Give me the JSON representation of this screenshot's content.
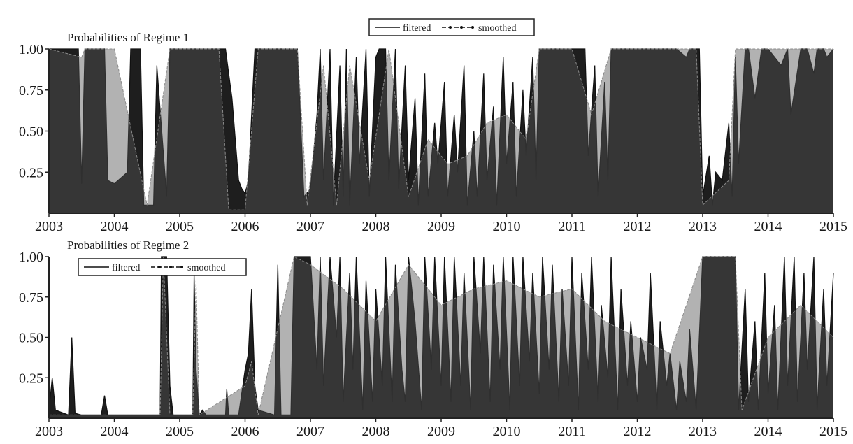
{
  "chart_data": [
    {
      "type": "area",
      "title": "Probabilities of Regime 1",
      "x_range": [
        2003,
        2015
      ],
      "ylim": [
        0,
        1
      ],
      "y_ticks": [
        "0.25",
        "0.50",
        "0.75",
        "1.00"
      ],
      "y_tick_values": [
        0.25,
        0.5,
        0.75,
        1.0
      ],
      "x_ticks": [
        "2003",
        "2004",
        "2005",
        "2006",
        "2007",
        "2008",
        "2009",
        "2010",
        "2011",
        "2012",
        "2013",
        "2014",
        "2015"
      ],
      "x_tick_values": [
        2003,
        2004,
        2005,
        2006,
        2007,
        2008,
        2009,
        2010,
        2011,
        2012,
        2013,
        2014,
        2015
      ],
      "legend": {
        "placement": "top-center",
        "entries": [
          "filtered",
          "smoothed"
        ]
      },
      "grid": false,
      "series": [
        {
          "name": "filtered",
          "color": "#1e1e1e",
          "x": [
            2003.0,
            2003.45,
            2003.5,
            2003.55,
            2003.85,
            2003.9,
            2004.0,
            2004.2,
            2004.25,
            2004.4,
            2004.45,
            2004.6,
            2004.65,
            2004.8,
            2004.85,
            2005.0,
            2005.5,
            2005.6,
            2005.7,
            2005.75,
            2005.8,
            2005.85,
            2005.9,
            2005.95,
            2006.0,
            2006.05,
            2006.1,
            2006.15,
            2006.2,
            2006.3,
            2006.6,
            2006.7,
            2006.75,
            2006.8,
            2006.9,
            2007.0,
            2007.1,
            2007.15,
            2007.2,
            2007.3,
            2007.35,
            2007.45,
            2007.5,
            2007.55,
            2007.6,
            2007.7,
            2007.75,
            2007.85,
            2007.9,
            2008.0,
            2008.05,
            2008.15,
            2008.2,
            2008.3,
            2008.35,
            2008.45,
            2008.5,
            2008.6,
            2008.65,
            2008.75,
            2008.8,
            2008.9,
            2008.95,
            2009.05,
            2009.1,
            2009.2,
            2009.25,
            2009.35,
            2009.4,
            2009.5,
            2009.55,
            2009.65,
            2009.7,
            2009.8,
            2009.85,
            2009.95,
            2010.0,
            2010.1,
            2010.15,
            2010.25,
            2010.3,
            2010.4,
            2010.45,
            2010.5,
            2010.6,
            2010.8,
            2011.0,
            2011.2,
            2011.25,
            2011.35,
            2011.4,
            2011.5,
            2011.55,
            2011.6,
            2011.7,
            2011.75,
            2011.8,
            2012.0,
            2012.2,
            2012.4,
            2012.6,
            2012.75,
            2012.8,
            2012.95,
            2013.0,
            2013.1,
            2013.15,
            2013.2,
            2013.3,
            2013.4,
            2013.45,
            2013.5,
            2013.55,
            2013.65,
            2013.7,
            2013.8,
            2013.9,
            2014.0,
            2014.2,
            2014.3,
            2014.35,
            2014.5,
            2014.6,
            2014.7,
            2014.75,
            2014.85,
            2014.9,
            2015.0
          ],
          "values": [
            1.0,
            1.0,
            0.18,
            1.0,
            1.0,
            0.2,
            0.18,
            0.25,
            1.0,
            1.0,
            0.05,
            0.05,
            0.9,
            0.1,
            1.0,
            1.0,
            1.0,
            1.0,
            1.0,
            0.85,
            0.7,
            0.45,
            0.2,
            0.15,
            0.12,
            0.2,
            0.6,
            1.0,
            1.0,
            1.0,
            1.0,
            1.0,
            1.0,
            1.0,
            0.1,
            0.15,
            0.6,
            1.0,
            0.2,
            1.0,
            0.05,
            0.9,
            0.1,
            1.0,
            0.05,
            0.95,
            0.3,
            1.0,
            0.1,
            0.95,
            1.0,
            1.0,
            0.2,
            1.0,
            0.15,
            0.9,
            0.2,
            0.7,
            0.05,
            0.85,
            0.1,
            0.55,
            0.3,
            0.8,
            0.1,
            0.6,
            0.25,
            0.9,
            0.05,
            0.5,
            0.1,
            0.85,
            0.2,
            0.65,
            0.05,
            0.95,
            0.3,
            0.8,
            0.1,
            0.75,
            0.35,
            0.95,
            0.2,
            1.0,
            1.0,
            1.0,
            1.0,
            1.0,
            0.35,
            0.9,
            0.1,
            0.8,
            0.2,
            1.0,
            1.0,
            1.0,
            1.0,
            1.0,
            1.0,
            1.0,
            1.0,
            0.95,
            1.0,
            1.0,
            0.1,
            0.35,
            0.05,
            0.25,
            0.2,
            0.55,
            0.1,
            0.95,
            0.3,
            1.0,
            1.0,
            0.7,
            1.0,
            1.0,
            0.9,
            1.0,
            0.6,
            1.0,
            1.0,
            0.85,
            1.0,
            1.0,
            0.95,
            1.0
          ]
        },
        {
          "name": "smoothed",
          "color": "#555555",
          "x": [
            2003.0,
            2003.5,
            2003.55,
            2004.0,
            2004.5,
            2004.85,
            2005.6,
            2005.75,
            2006.0,
            2006.2,
            2006.8,
            2006.95,
            2007.2,
            2007.4,
            2007.6,
            2007.9,
            2008.2,
            2008.5,
            2008.8,
            2009.1,
            2009.4,
            2009.7,
            2010.0,
            2010.3,
            2010.5,
            2011.0,
            2011.3,
            2011.6,
            2012.0,
            2012.5,
            2012.9,
            2013.0,
            2013.4,
            2013.5,
            2014.0,
            2014.5,
            2015.0
          ],
          "values": [
            1.0,
            0.95,
            1.0,
            1.0,
            0.05,
            1.0,
            1.0,
            0.02,
            0.02,
            1.0,
            1.0,
            0.05,
            0.9,
            0.05,
            0.9,
            0.2,
            1.0,
            0.1,
            0.45,
            0.3,
            0.35,
            0.55,
            0.6,
            0.45,
            1.0,
            1.0,
            0.6,
            1.0,
            1.0,
            1.0,
            1.0,
            0.05,
            0.2,
            1.0,
            1.0,
            1.0,
            1.0
          ]
        }
      ]
    },
    {
      "type": "area",
      "title": "Probabilities of Regime 2",
      "x_range": [
        2003,
        2015
      ],
      "ylim": [
        0,
        1
      ],
      "y_ticks": [
        "0.25",
        "0.50",
        "0.75",
        "1.00"
      ],
      "y_tick_values": [
        0.25,
        0.5,
        0.75,
        1.0
      ],
      "x_ticks": [
        "2003",
        "2004",
        "2005",
        "2006",
        "2007",
        "2008",
        "2009",
        "2010",
        "2011",
        "2012",
        "2013",
        "2014",
        "2015"
      ],
      "x_tick_values": [
        2003,
        2004,
        2005,
        2006,
        2007,
        2008,
        2009,
        2010,
        2011,
        2012,
        2013,
        2014,
        2015
      ],
      "legend": {
        "placement": "top-left",
        "entries": [
          "filtered",
          "smoothed"
        ]
      },
      "grid": false,
      "series": [
        {
          "name": "filtered",
          "color": "#1e1e1e",
          "x": [
            2003.0,
            2003.05,
            2003.1,
            2003.3,
            2003.35,
            2003.4,
            2003.5,
            2003.8,
            2003.85,
            2003.9,
            2004.5,
            2004.7,
            2004.72,
            2004.8,
            2004.85,
            2004.9,
            2005.2,
            2005.22,
            2005.25,
            2005.3,
            2005.35,
            2005.4,
            2005.7,
            2005.72,
            2005.75,
            2005.9,
            2006.0,
            2006.05,
            2006.1,
            2006.15,
            2006.2,
            2006.45,
            2006.5,
            2006.55,
            2006.7,
            2006.75,
            2007.0,
            2007.1,
            2007.15,
            2007.2,
            2007.3,
            2007.4,
            2007.45,
            2007.5,
            2007.6,
            2007.65,
            2007.7,
            2007.8,
            2007.85,
            2007.95,
            2008.0,
            2008.1,
            2008.15,
            2008.25,
            2008.3,
            2008.4,
            2008.45,
            2008.5,
            2008.6,
            2008.7,
            2008.75,
            2008.85,
            2008.9,
            2009.0,
            2009.05,
            2009.15,
            2009.2,
            2009.3,
            2009.35,
            2009.45,
            2009.5,
            2009.6,
            2009.65,
            2009.75,
            2009.8,
            2009.9,
            2009.95,
            2010.05,
            2010.1,
            2010.2,
            2010.25,
            2010.35,
            2010.4,
            2010.5,
            2010.55,
            2010.65,
            2010.7,
            2010.8,
            2010.85,
            2010.95,
            2011.0,
            2011.1,
            2011.15,
            2011.25,
            2011.3,
            2011.4,
            2011.45,
            2011.55,
            2011.6,
            2011.7,
            2011.75,
            2011.85,
            2011.9,
            2012.0,
            2012.05,
            2012.15,
            2012.2,
            2012.3,
            2012.35,
            2012.45,
            2012.5,
            2012.6,
            2012.65,
            2012.75,
            2012.8,
            2012.9,
            2013.0,
            2013.1,
            2013.2,
            2013.5,
            2013.55,
            2013.65,
            2013.7,
            2013.8,
            2013.85,
            2013.95,
            2014.0,
            2014.1,
            2014.15,
            2014.25,
            2014.3,
            2014.4,
            2014.45,
            2014.55,
            2014.6,
            2014.7,
            2014.75,
            2014.85,
            2014.9,
            2015.0
          ],
          "values": [
            0.05,
            0.25,
            0.05,
            0.02,
            0.5,
            0.03,
            0.02,
            0.02,
            0.14,
            0.02,
            0.02,
            0.02,
            1.0,
            1.0,
            0.2,
            0.02,
            0.02,
            0.9,
            0.3,
            0.02,
            0.05,
            0.02,
            0.02,
            0.18,
            0.02,
            0.02,
            0.3,
            0.4,
            0.8,
            0.2,
            0.05,
            0.02,
            0.95,
            0.02,
            0.02,
            1.0,
            1.0,
            0.3,
            1.0,
            0.2,
            1.0,
            0.5,
            1.0,
            0.1,
            0.9,
            0.3,
            1.0,
            0.05,
            0.85,
            0.1,
            0.8,
            0.2,
            1.0,
            0.1,
            0.95,
            0.3,
            0.1,
            1.0,
            0.6,
            0.05,
            1.0,
            0.3,
            1.0,
            0.2,
            1.0,
            0.1,
            1.0,
            0.2,
            0.9,
            0.05,
            1.0,
            0.4,
            1.0,
            0.1,
            0.95,
            0.3,
            1.0,
            0.05,
            1.0,
            0.2,
            1.0,
            0.35,
            0.9,
            0.15,
            1.0,
            0.3,
            0.95,
            0.1,
            0.8,
            0.2,
            1.0,
            0.05,
            0.9,
            0.3,
            1.0,
            0.1,
            0.7,
            0.25,
            1.0,
            0.05,
            0.8,
            0.2,
            0.6,
            0.1,
            0.5,
            0.3,
            0.9,
            0.05,
            0.6,
            0.2,
            0.4,
            0.05,
            0.35,
            0.1,
            0.55,
            0.05,
            1.0,
            1.0,
            1.0,
            1.0,
            0.05,
            0.8,
            0.1,
            0.6,
            0.05,
            0.9,
            0.15,
            0.7,
            0.05,
            1.0,
            0.2,
            1.0,
            0.1,
            0.9,
            0.3,
            1.0,
            0.05,
            0.8,
            0.2,
            0.9
          ]
        },
        {
          "name": "smoothed",
          "color": "#555555",
          "x": [
            2003.0,
            2003.5,
            2004.7,
            2004.75,
            2004.85,
            2005.2,
            2005.25,
            2005.3,
            2006.0,
            2006.1,
            2006.2,
            2006.75,
            2007.0,
            2007.5,
            2008.0,
            2008.5,
            2009.0,
            2009.5,
            2010.0,
            2010.5,
            2011.0,
            2011.5,
            2012.0,
            2012.5,
            2013.0,
            2013.2,
            2013.5,
            2013.6,
            2014.0,
            2014.5,
            2015.0
          ],
          "values": [
            0.02,
            0.02,
            0.02,
            1.0,
            0.02,
            0.02,
            0.85,
            0.02,
            0.2,
            0.35,
            0.02,
            1.0,
            0.95,
            0.8,
            0.6,
            0.95,
            0.7,
            0.8,
            0.85,
            0.75,
            0.8,
            0.6,
            0.5,
            0.4,
            1.0,
            1.0,
            1.0,
            0.05,
            0.5,
            0.7,
            0.5
          ]
        }
      ]
    }
  ]
}
